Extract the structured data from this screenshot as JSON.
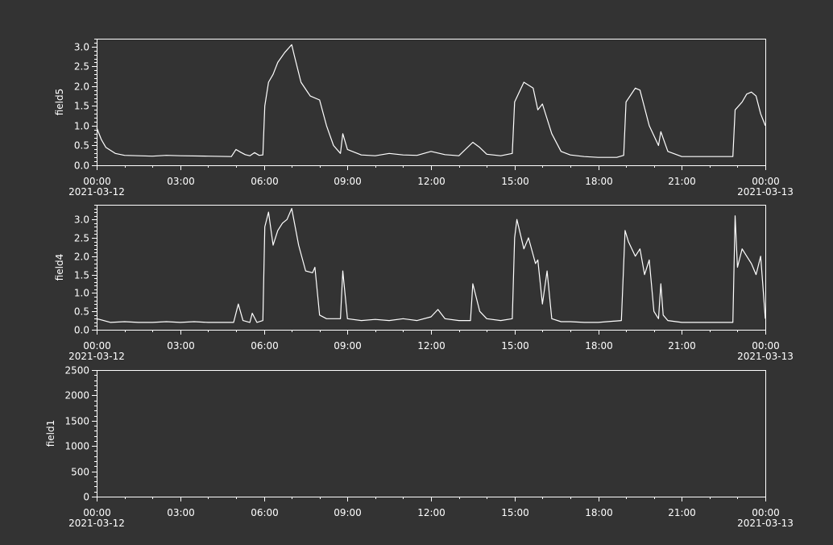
{
  "chart_data": [
    {
      "type": "line",
      "title": "",
      "xlabel": "",
      "ylabel": "field5",
      "ylim": [
        0,
        3.2
      ],
      "yticks": [
        "0.0",
        "0.5",
        "1.0",
        "1.5",
        "2.0",
        "2.5",
        "3.0"
      ],
      "ytick_values": [
        0,
        0.5,
        1,
        1.5,
        2,
        2.5,
        3
      ],
      "xlim": [
        "2021-03-12 00:00",
        "2021-03-13 00:00"
      ],
      "xticks": [
        "00:00",
        "03:00",
        "06:00",
        "09:00",
        "12:00",
        "15:00",
        "18:00",
        "21:00",
        "00:00"
      ],
      "x_date_labels": {
        "first": "2021-03-12",
        "last": "2021-03-13"
      },
      "grid": false,
      "series": [
        {
          "x": [
            "00:00",
            "00:10",
            "00:20",
            "00:40",
            "01:00",
            "02:00",
            "02:30",
            "03:00",
            "04:00",
            "04:50",
            "05:00",
            "05:10",
            "05:20",
            "05:30",
            "05:40",
            "05:50",
            "05:58",
            "06:02",
            "06:10",
            "06:20",
            "06:30",
            "06:45",
            "07:00",
            "07:05",
            "07:20",
            "07:40",
            "08:00",
            "08:15",
            "08:30",
            "08:45",
            "08:50",
            "09:00",
            "09:30",
            "10:00",
            "10:30",
            "11:00",
            "11:30",
            "12:00",
            "12:30",
            "13:00",
            "13:30",
            "13:45",
            "14:00",
            "14:30",
            "14:55",
            "15:00",
            "15:10",
            "15:20",
            "15:40",
            "15:50",
            "16:00",
            "16:20",
            "16:40",
            "17:00",
            "17:30",
            "18:00",
            "18:40",
            "18:55",
            "19:00",
            "19:20",
            "19:30",
            "19:50",
            "20:10",
            "20:15",
            "20:30",
            "21:00",
            "21:30",
            "22:00",
            "22:50",
            "22:55",
            "23:10",
            "23:20",
            "23:30",
            "23:40",
            "23:50",
            "24:00"
          ],
          "y": [
            0.95,
            0.65,
            0.45,
            0.3,
            0.25,
            0.23,
            0.25,
            0.24,
            0.23,
            0.22,
            0.4,
            0.33,
            0.27,
            0.24,
            0.32,
            0.25,
            0.26,
            1.5,
            2.1,
            2.3,
            2.6,
            2.85,
            3.05,
            2.8,
            2.1,
            1.75,
            1.65,
            1.0,
            0.5,
            0.3,
            0.8,
            0.4,
            0.26,
            0.24,
            0.3,
            0.26,
            0.25,
            0.35,
            0.27,
            0.24,
            0.58,
            0.45,
            0.28,
            0.24,
            0.3,
            1.6,
            1.85,
            2.1,
            1.95,
            1.4,
            1.55,
            0.8,
            0.35,
            0.26,
            0.22,
            0.2,
            0.2,
            0.25,
            1.6,
            1.95,
            1.9,
            1.0,
            0.5,
            0.85,
            0.35,
            0.22,
            0.22,
            0.22,
            0.22,
            1.4,
            1.6,
            1.8,
            1.85,
            1.75,
            1.3,
            1.0
          ]
        }
      ]
    },
    {
      "type": "line",
      "title": "",
      "xlabel": "",
      "ylabel": "field4",
      "ylim": [
        0,
        3.4
      ],
      "yticks": [
        "0.0",
        "0.5",
        "1.0",
        "1.5",
        "2.0",
        "2.5",
        "3.0"
      ],
      "ytick_values": [
        0,
        0.5,
        1,
        1.5,
        2,
        2.5,
        3
      ],
      "xlim": [
        "2021-03-12 00:00",
        "2021-03-13 00:00"
      ],
      "xticks": [
        "00:00",
        "03:00",
        "06:00",
        "09:00",
        "12:00",
        "15:00",
        "18:00",
        "21:00",
        "00:00"
      ],
      "x_date_labels": {
        "first": "2021-03-12",
        "last": "2021-03-13"
      },
      "grid": false,
      "series": [
        {
          "x": [
            "00:00",
            "00:30",
            "01:00",
            "01:30",
            "02:00",
            "02:30",
            "03:00",
            "03:30",
            "04:00",
            "04:30",
            "04:55",
            "05:05",
            "05:15",
            "05:30",
            "05:35",
            "05:45",
            "05:58",
            "06:02",
            "06:10",
            "06:20",
            "06:30",
            "06:40",
            "06:50",
            "07:00",
            "07:15",
            "07:30",
            "07:45",
            "07:50",
            "08:00",
            "08:15",
            "08:30",
            "08:45",
            "08:50",
            "09:00",
            "09:30",
            "10:00",
            "10:30",
            "11:00",
            "11:30",
            "12:00",
            "12:15",
            "12:30",
            "13:00",
            "13:25",
            "13:30",
            "13:45",
            "14:00",
            "14:30",
            "14:55",
            "15:00",
            "15:05",
            "15:20",
            "15:30",
            "15:45",
            "15:50",
            "16:00",
            "16:10",
            "16:20",
            "16:40",
            "17:00",
            "17:30",
            "18:00",
            "18:50",
            "18:58",
            "19:05",
            "19:20",
            "19:30",
            "19:40",
            "19:50",
            "20:00",
            "20:10",
            "20:15",
            "20:20",
            "20:30",
            "21:00",
            "21:30",
            "22:00",
            "22:50",
            "22:55",
            "23:00",
            "23:10",
            "23:20",
            "23:30",
            "23:40",
            "23:50",
            "24:00"
          ],
          "y": [
            0.3,
            0.2,
            0.22,
            0.2,
            0.2,
            0.22,
            0.2,
            0.22,
            0.2,
            0.2,
            0.2,
            0.7,
            0.25,
            0.2,
            0.45,
            0.2,
            0.25,
            2.8,
            3.2,
            2.3,
            2.7,
            2.9,
            3.0,
            3.3,
            2.3,
            1.6,
            1.55,
            1.7,
            0.4,
            0.3,
            0.3,
            0.3,
            1.6,
            0.3,
            0.25,
            0.28,
            0.25,
            0.3,
            0.25,
            0.35,
            0.55,
            0.3,
            0.25,
            0.25,
            1.25,
            0.5,
            0.3,
            0.25,
            0.3,
            2.5,
            3.0,
            2.2,
            2.5,
            1.8,
            1.9,
            0.7,
            1.6,
            0.3,
            0.22,
            0.22,
            0.2,
            0.2,
            0.25,
            2.7,
            2.4,
            2.0,
            2.2,
            1.5,
            1.9,
            0.5,
            0.3,
            1.25,
            0.4,
            0.25,
            0.2,
            0.2,
            0.2,
            0.2,
            3.1,
            1.7,
            2.2,
            2.0,
            1.8,
            1.5,
            2.0,
            0.3
          ]
        }
      ]
    },
    {
      "type": "line",
      "title": "",
      "xlabel": "",
      "ylabel": "field1",
      "ylim": [
        0,
        2500
      ],
      "yticks": [
        "0",
        "500",
        "1000",
        "1500",
        "2000",
        "2500"
      ],
      "ytick_values": [
        0,
        500,
        1000,
        1500,
        2000,
        2500
      ],
      "xlim": [
        "2021-03-12 00:00",
        "2021-03-13 00:00"
      ],
      "xticks": [
        "00:00",
        "03:00",
        "06:00",
        "09:00",
        "12:00",
        "15:00",
        "18:00",
        "21:00",
        "00:00"
      ],
      "x_date_labels": {
        "first": "2021-03-12",
        "last": "2021-03-13"
      },
      "grid": false,
      "series": []
    }
  ]
}
